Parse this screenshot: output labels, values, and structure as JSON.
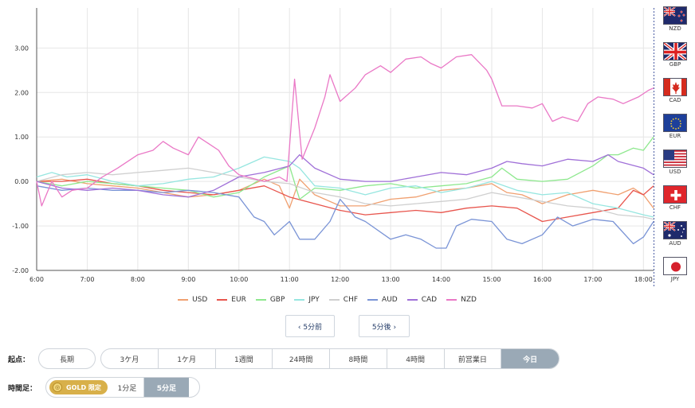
{
  "chart_data": {
    "type": "line",
    "x_ticks": [
      "6:00",
      "7:00",
      "8:00",
      "9:00",
      "10:00",
      "11:00",
      "12:00",
      "13:00",
      "14:00",
      "15:00",
      "16:00",
      "17:00",
      "18:00"
    ],
    "y_ticks": [
      "3.00",
      "2.00",
      "1.00",
      "0.00",
      "-1.00",
      "-2.00"
    ],
    "ylim": [
      -2.0,
      3.9
    ],
    "xlim_hours": [
      6.0,
      18.2
    ],
    "grid": true,
    "legend_position": "bottom",
    "series": [
      {
        "name": "USD",
        "color": "#f0a070",
        "points": [
          [
            6.0,
            0.0
          ],
          [
            6.5,
            0.05
          ],
          [
            7.0,
            -0.05
          ],
          [
            7.5,
            -0.1
          ],
          [
            8.0,
            -0.15
          ],
          [
            8.5,
            -0.25
          ],
          [
            9.0,
            -0.35
          ],
          [
            9.5,
            -0.3
          ],
          [
            10.0,
            -0.2
          ],
          [
            10.5,
            0.05
          ],
          [
            10.8,
            -0.1
          ],
          [
            11.0,
            -0.6
          ],
          [
            11.2,
            0.05
          ],
          [
            11.5,
            -0.3
          ],
          [
            12.0,
            -0.55
          ],
          [
            12.5,
            -0.55
          ],
          [
            13.0,
            -0.4
          ],
          [
            13.5,
            -0.35
          ],
          [
            14.0,
            -0.2
          ],
          [
            14.5,
            -0.15
          ],
          [
            15.0,
            -0.05
          ],
          [
            15.3,
            -0.25
          ],
          [
            15.6,
            -0.3
          ],
          [
            16.0,
            -0.5
          ],
          [
            16.5,
            -0.3
          ],
          [
            17.0,
            -0.2
          ],
          [
            17.5,
            -0.3
          ],
          [
            17.8,
            -0.15
          ],
          [
            18.0,
            -0.3
          ],
          [
            18.2,
            -0.6
          ]
        ]
      },
      {
        "name": "EUR",
        "color": "#e8554d",
        "points": [
          [
            6.0,
            0.0
          ],
          [
            6.5,
            0.0
          ],
          [
            7.0,
            0.05
          ],
          [
            7.5,
            -0.05
          ],
          [
            8.0,
            -0.1
          ],
          [
            8.5,
            -0.2
          ],
          [
            9.0,
            -0.25
          ],
          [
            9.5,
            -0.3
          ],
          [
            10.0,
            -0.2
          ],
          [
            10.5,
            -0.1
          ],
          [
            11.0,
            -0.35
          ],
          [
            11.5,
            -0.5
          ],
          [
            12.0,
            -0.65
          ],
          [
            12.5,
            -0.75
          ],
          [
            13.0,
            -0.7
          ],
          [
            13.5,
            -0.65
          ],
          [
            14.0,
            -0.7
          ],
          [
            14.5,
            -0.6
          ],
          [
            15.0,
            -0.55
          ],
          [
            15.5,
            -0.6
          ],
          [
            16.0,
            -0.9
          ],
          [
            16.5,
            -0.8
          ],
          [
            17.0,
            -0.7
          ],
          [
            17.5,
            -0.6
          ],
          [
            17.8,
            -0.2
          ],
          [
            18.0,
            -0.3
          ],
          [
            18.2,
            -0.1
          ]
        ]
      },
      {
        "name": "GBP",
        "color": "#8ee88e",
        "points": [
          [
            6.0,
            0.0
          ],
          [
            6.5,
            -0.1
          ],
          [
            7.0,
            0.0
          ],
          [
            7.5,
            -0.05
          ],
          [
            8.0,
            -0.1
          ],
          [
            8.5,
            -0.15
          ],
          [
            9.0,
            -0.2
          ],
          [
            9.5,
            -0.35
          ],
          [
            10.0,
            -0.25
          ],
          [
            10.5,
            0.1
          ],
          [
            11.0,
            0.35
          ],
          [
            11.2,
            -0.4
          ],
          [
            11.5,
            -0.15
          ],
          [
            12.0,
            -0.2
          ],
          [
            12.5,
            -0.1
          ],
          [
            13.0,
            -0.05
          ],
          [
            13.5,
            -0.15
          ],
          [
            14.0,
            -0.1
          ],
          [
            14.5,
            -0.05
          ],
          [
            15.0,
            0.1
          ],
          [
            15.2,
            0.3
          ],
          [
            15.5,
            0.05
          ],
          [
            16.0,
            0.0
          ],
          [
            16.5,
            0.05
          ],
          [
            17.0,
            0.35
          ],
          [
            17.3,
            0.6
          ],
          [
            17.5,
            0.6
          ],
          [
            17.8,
            0.75
          ],
          [
            18.0,
            0.7
          ],
          [
            18.2,
            1.0
          ]
        ]
      },
      {
        "name": "JPY",
        "color": "#96e6e0",
        "points": [
          [
            6.0,
            0.1
          ],
          [
            6.3,
            0.2
          ],
          [
            6.6,
            0.1
          ],
          [
            7.0,
            0.15
          ],
          [
            7.5,
            0.0
          ],
          [
            8.0,
            -0.1
          ],
          [
            8.5,
            -0.05
          ],
          [
            9.0,
            0.05
          ],
          [
            9.5,
            0.1
          ],
          [
            10.0,
            0.3
          ],
          [
            10.5,
            0.55
          ],
          [
            11.0,
            0.45
          ],
          [
            11.2,
            0.3
          ],
          [
            11.5,
            -0.1
          ],
          [
            12.0,
            -0.15
          ],
          [
            12.5,
            -0.3
          ],
          [
            13.0,
            -0.15
          ],
          [
            13.5,
            -0.1
          ],
          [
            14.0,
            -0.25
          ],
          [
            14.5,
            -0.15
          ],
          [
            15.0,
            0.0
          ],
          [
            15.5,
            -0.2
          ],
          [
            16.0,
            -0.3
          ],
          [
            16.5,
            -0.25
          ],
          [
            17.0,
            -0.5
          ],
          [
            17.5,
            -0.6
          ],
          [
            18.0,
            -0.75
          ],
          [
            18.2,
            -0.8
          ]
        ]
      },
      {
        "name": "CHF",
        "color": "#cfcfcf",
        "points": [
          [
            6.0,
            0.0
          ],
          [
            6.5,
            0.15
          ],
          [
            7.0,
            0.2
          ],
          [
            7.5,
            0.15
          ],
          [
            8.0,
            0.2
          ],
          [
            8.5,
            0.25
          ],
          [
            9.0,
            0.3
          ],
          [
            9.5,
            0.2
          ],
          [
            10.0,
            0.1
          ],
          [
            10.5,
            0.0
          ],
          [
            11.0,
            -0.05
          ],
          [
            11.5,
            -0.25
          ],
          [
            12.0,
            -0.35
          ],
          [
            12.5,
            -0.5
          ],
          [
            13.0,
            -0.55
          ],
          [
            13.5,
            -0.5
          ],
          [
            14.0,
            -0.45
          ],
          [
            14.5,
            -0.4
          ],
          [
            15.0,
            -0.25
          ],
          [
            15.5,
            -0.35
          ],
          [
            16.0,
            -0.45
          ],
          [
            16.5,
            -0.55
          ],
          [
            17.0,
            -0.6
          ],
          [
            17.5,
            -0.75
          ],
          [
            18.0,
            -0.8
          ],
          [
            18.2,
            -0.85
          ]
        ]
      },
      {
        "name": "AUD",
        "color": "#7a94d6",
        "points": [
          [
            6.0,
            -0.1
          ],
          [
            6.5,
            -0.2
          ],
          [
            7.0,
            -0.15
          ],
          [
            7.5,
            -0.2
          ],
          [
            8.0,
            -0.2
          ],
          [
            8.5,
            -0.25
          ],
          [
            9.0,
            -0.2
          ],
          [
            9.5,
            -0.25
          ],
          [
            10.0,
            -0.35
          ],
          [
            10.3,
            -0.8
          ],
          [
            10.5,
            -0.9
          ],
          [
            10.7,
            -1.2
          ],
          [
            11.0,
            -0.9
          ],
          [
            11.2,
            -1.3
          ],
          [
            11.5,
            -1.3
          ],
          [
            11.8,
            -0.9
          ],
          [
            12.0,
            -0.4
          ],
          [
            12.3,
            -0.8
          ],
          [
            12.5,
            -0.9
          ],
          [
            13.0,
            -1.3
          ],
          [
            13.3,
            -1.2
          ],
          [
            13.6,
            -1.3
          ],
          [
            13.9,
            -1.5
          ],
          [
            14.1,
            -1.5
          ],
          [
            14.3,
            -1.0
          ],
          [
            14.6,
            -0.85
          ],
          [
            15.0,
            -0.9
          ],
          [
            15.3,
            -1.3
          ],
          [
            15.6,
            -1.4
          ],
          [
            16.0,
            -1.2
          ],
          [
            16.3,
            -0.8
          ],
          [
            16.6,
            -1.0
          ],
          [
            17.0,
            -0.85
          ],
          [
            17.4,
            -0.9
          ],
          [
            17.8,
            -1.4
          ],
          [
            18.0,
            -1.25
          ],
          [
            18.2,
            -0.9
          ]
        ]
      },
      {
        "name": "CAD",
        "color": "#a070d8",
        "points": [
          [
            6.0,
            0.0
          ],
          [
            6.5,
            -0.15
          ],
          [
            7.0,
            -0.2
          ],
          [
            7.5,
            -0.15
          ],
          [
            8.0,
            -0.2
          ],
          [
            8.5,
            -0.3
          ],
          [
            9.0,
            -0.35
          ],
          [
            9.5,
            -0.2
          ],
          [
            10.0,
            0.1
          ],
          [
            10.5,
            0.2
          ],
          [
            11.0,
            0.35
          ],
          [
            11.2,
            0.6
          ],
          [
            11.5,
            0.3
          ],
          [
            12.0,
            0.05
          ],
          [
            12.5,
            0.0
          ],
          [
            13.0,
            0.0
          ],
          [
            13.5,
            0.1
          ],
          [
            14.0,
            0.2
          ],
          [
            14.5,
            0.15
          ],
          [
            15.0,
            0.3
          ],
          [
            15.3,
            0.45
          ],
          [
            15.6,
            0.4
          ],
          [
            16.0,
            0.35
          ],
          [
            16.5,
            0.5
          ],
          [
            17.0,
            0.45
          ],
          [
            17.3,
            0.6
          ],
          [
            17.5,
            0.45
          ],
          [
            18.0,
            0.3
          ],
          [
            18.2,
            0.15
          ]
        ]
      },
      {
        "name": "NZD",
        "color": "#ea78c6",
        "points": [
          [
            6.0,
            0.0
          ],
          [
            6.1,
            -0.55
          ],
          [
            6.3,
            0.0
          ],
          [
            6.5,
            -0.35
          ],
          [
            6.7,
            -0.2
          ],
          [
            7.0,
            -0.15
          ],
          [
            7.3,
            0.1
          ],
          [
            7.6,
            0.3
          ],
          [
            8.0,
            0.6
          ],
          [
            8.3,
            0.7
          ],
          [
            8.5,
            0.9
          ],
          [
            8.7,
            0.75
          ],
          [
            9.0,
            0.6
          ],
          [
            9.2,
            1.0
          ],
          [
            9.4,
            0.85
          ],
          [
            9.6,
            0.7
          ],
          [
            9.8,
            0.35
          ],
          [
            10.0,
            0.15
          ],
          [
            10.5,
            0.0
          ],
          [
            10.8,
            0.1
          ],
          [
            10.95,
            0.0
          ],
          [
            11.1,
            2.3
          ],
          [
            11.25,
            0.5
          ],
          [
            11.5,
            1.2
          ],
          [
            11.7,
            1.9
          ],
          [
            11.8,
            2.4
          ],
          [
            12.0,
            1.8
          ],
          [
            12.3,
            2.1
          ],
          [
            12.5,
            2.4
          ],
          [
            12.8,
            2.6
          ],
          [
            13.0,
            2.45
          ],
          [
            13.3,
            2.75
          ],
          [
            13.6,
            2.8
          ],
          [
            13.8,
            2.65
          ],
          [
            14.0,
            2.55
          ],
          [
            14.3,
            2.8
          ],
          [
            14.6,
            2.85
          ],
          [
            14.9,
            2.5
          ],
          [
            15.0,
            2.3
          ],
          [
            15.2,
            1.7
          ],
          [
            15.5,
            1.7
          ],
          [
            15.8,
            1.65
          ],
          [
            16.0,
            1.75
          ],
          [
            16.2,
            1.35
          ],
          [
            16.4,
            1.45
          ],
          [
            16.7,
            1.35
          ],
          [
            16.9,
            1.75
          ],
          [
            17.1,
            1.9
          ],
          [
            17.4,
            1.85
          ],
          [
            17.6,
            1.75
          ],
          [
            17.9,
            1.9
          ],
          [
            18.1,
            2.05
          ],
          [
            18.2,
            2.1
          ]
        ]
      }
    ]
  },
  "flags": [
    {
      "code": "NZD",
      "icon": "nz-flag-icon"
    },
    {
      "code": "GBP",
      "icon": "uk-flag-icon"
    },
    {
      "code": "CAD",
      "icon": "canada-flag-icon"
    },
    {
      "code": "EUR",
      "icon": "eu-flag-icon"
    },
    {
      "code": "USD",
      "icon": "us-flag-icon"
    },
    {
      "code": "CHF",
      "icon": "swiss-flag-icon"
    },
    {
      "code": "AUD",
      "icon": "australia-flag-icon"
    },
    {
      "code": "JPY",
      "icon": "japan-flag-icon"
    }
  ],
  "nav": {
    "prev_label": "‹ 5分前",
    "next_label": "5分後 ›"
  },
  "start_point": {
    "label": "起点：",
    "single_option": "長期",
    "options": [
      {
        "label": "3ケ月"
      },
      {
        "label": "1ケ月"
      },
      {
        "label": "1週間"
      },
      {
        "label": "24時間"
      },
      {
        "label": "8時間"
      },
      {
        "label": "4時間"
      },
      {
        "label": "前営業日"
      },
      {
        "label": "今日"
      }
    ],
    "selected": "今日"
  },
  "timeframe": {
    "label": "時間足：",
    "gold_badge": "GOLD 限定",
    "options": [
      {
        "label": "1分足"
      },
      {
        "label": "5分足"
      }
    ],
    "selected": "5分足"
  },
  "colors": {
    "grid": "#e6e6e6",
    "axis": "#444444",
    "dashed_rule": "#4b5da3",
    "active_segment": "#9aa9b6"
  }
}
